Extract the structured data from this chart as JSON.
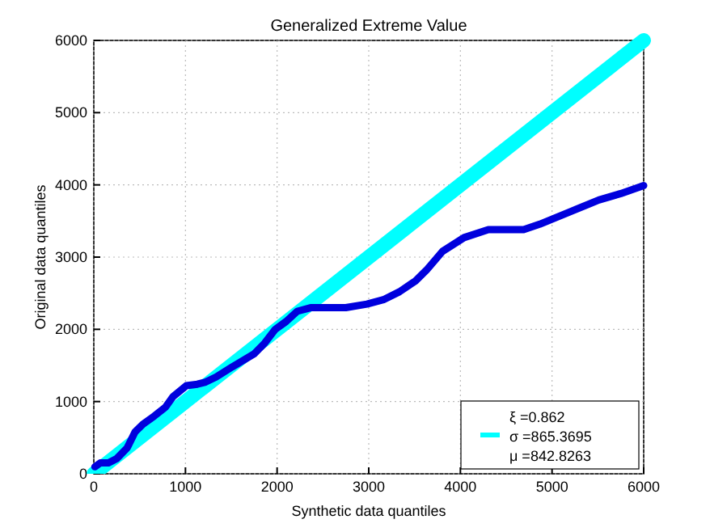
{
  "chart_data": {
    "type": "line",
    "title": "Generalized Extreme Value",
    "xlabel": "Synthetic data quantiles",
    "ylabel": "Original data quantiles",
    "xlim": [
      0,
      6000
    ],
    "ylim": [
      0,
      6000
    ],
    "xticks": [
      0,
      1000,
      2000,
      3000,
      4000,
      5000,
      6000
    ],
    "yticks": [
      0,
      1000,
      2000,
      3000,
      4000,
      5000,
      6000
    ],
    "grid": true,
    "legend": "bottom right",
    "series": [
      {
        "name": "ξ =0.862\nσ =865.3695\nμ =842.8263",
        "color": "#00ffff",
        "x": [
          0,
          6000
        ],
        "values": [
          0,
          6000
        ]
      },
      {
        "color": "#0000dd",
        "x": [
          12,
          70,
          160,
          250,
          365,
          450,
          540,
          660,
          780,
          865,
          1010,
          1130,
          1220,
          1335,
          1510,
          1750,
          1865,
          1980,
          2100,
          2220,
          2365,
          2750,
          2980,
          3160,
          3335,
          3510,
          3630,
          3805,
          4040,
          4305,
          4690,
          4865,
          5220,
          5510,
          5750,
          6000
        ],
        "values": [
          97,
          150,
          150,
          210,
          360,
          580,
          690,
          800,
          920,
          1070,
          1220,
          1240,
          1270,
          1340,
          1480,
          1660,
          1810,
          2000,
          2110,
          2250,
          2300,
          2300,
          2350,
          2410,
          2520,
          2670,
          2820,
          3080,
          3270,
          3380,
          3380,
          3455,
          3640,
          3790,
          3880,
          3990
        ]
      }
    ]
  }
}
